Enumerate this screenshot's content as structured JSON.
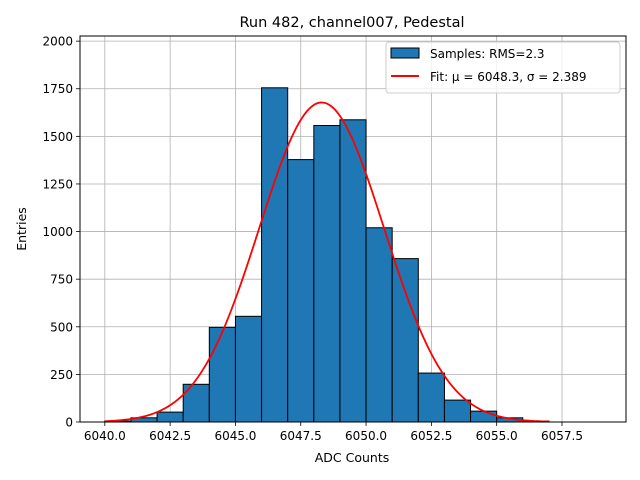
{
  "chart_data": {
    "type": "bar",
    "title": "Run 482, channel007, Pedestal",
    "xlabel": "ADC Counts",
    "ylabel": "Entries",
    "xlim": [
      6039.05,
      6059.95
    ],
    "ylim": [
      0,
      2027
    ],
    "grid": true,
    "legend_position": "top-right",
    "x_ticks": [
      6040.0,
      6042.5,
      6045.0,
      6047.5,
      6050.0,
      6052.5,
      6055.0,
      6057.5
    ],
    "x_tick_labels": [
      "6040.0",
      "6042.5",
      "6045.0",
      "6047.5",
      "6050.0",
      "6052.5",
      "6055.0",
      "6057.5"
    ],
    "y_ticks": [
      0,
      250,
      500,
      750,
      1000,
      1250,
      1500,
      1750,
      2000
    ],
    "y_tick_labels": [
      "0",
      "250",
      "500",
      "750",
      "1000",
      "1250",
      "1500",
      "1750",
      "2000"
    ],
    "bin_edges": [
      6040,
      6041,
      6042,
      6043,
      6044,
      6045,
      6046,
      6047,
      6048,
      6049,
      6050,
      6051,
      6052,
      6053,
      6054,
      6055,
      6056,
      6057,
      6058,
      6059
    ],
    "values": [
      5,
      22,
      52,
      198,
      497,
      555,
      1755,
      1378,
      1557,
      1587,
      1020,
      858,
      257,
      115,
      57,
      22,
      5,
      0,
      0
    ],
    "fit": {
      "mu": 6048.3,
      "sigma": 2.389,
      "amplitude": 1678,
      "x_range": [
        6040,
        6057
      ]
    },
    "legend": [
      {
        "label": "Samples: RMS=2.3",
        "kind": "bar",
        "color": "#1f77b4"
      },
      {
        "label": "Fit: μ = 6048.3, σ = 2.389",
        "kind": "line",
        "color": "#ff0000"
      }
    ],
    "colors": {
      "bar": "#1f77b4",
      "bar_edge": "#000000",
      "fit": "#ff0000",
      "grid": "#b0b0b0"
    }
  }
}
